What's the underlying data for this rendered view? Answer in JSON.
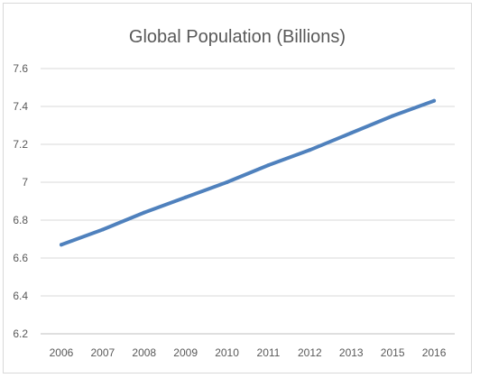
{
  "chart_data": {
    "type": "line",
    "title": "Global Population (Billions)",
    "xlabel": "",
    "ylabel": "",
    "categories": [
      "2006",
      "2007",
      "2008",
      "2009",
      "2010",
      "2011",
      "2012",
      "2013",
      "2015",
      "2016"
    ],
    "series": [
      {
        "values": [
          6.67,
          6.75,
          6.84,
          6.92,
          7.0,
          7.09,
          7.17,
          7.26,
          7.35,
          7.43
        ],
        "color": "#4f81bd"
      }
    ],
    "ylim": [
      6.2,
      7.6
    ],
    "yticks": [
      "7.6",
      "7.4",
      "7.2",
      "7",
      "6.8",
      "6.6",
      "6.4",
      "6.2"
    ],
    "grid": true,
    "legend": "none"
  }
}
